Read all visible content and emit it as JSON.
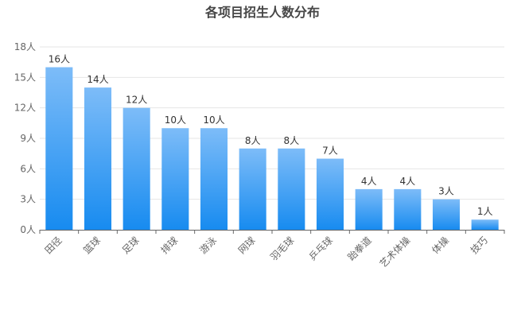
{
  "chart_data": {
    "type": "bar",
    "title": "各项目招生人数分布",
    "categories": [
      "田径",
      "篮球",
      "足球",
      "排球",
      "游泳",
      "网球",
      "羽毛球",
      "乒乓球",
      "跆拳道",
      "艺术体操",
      "体操",
      "技巧"
    ],
    "values": [
      16,
      14,
      12,
      10,
      10,
      8,
      8,
      7,
      4,
      4,
      3,
      1
    ],
    "value_suffix": "人",
    "y_ticks": [
      0,
      3,
      6,
      9,
      12,
      15,
      18
    ],
    "ylim": [
      0,
      18
    ],
    "grid": true,
    "legend": "none",
    "colors": {
      "bar_top": "#7DBCF8",
      "bar_bottom": "#178BF0",
      "grid": "#E6E6E6",
      "axis": "#666666",
      "label": "#333333",
      "tick": "#666666"
    }
  }
}
